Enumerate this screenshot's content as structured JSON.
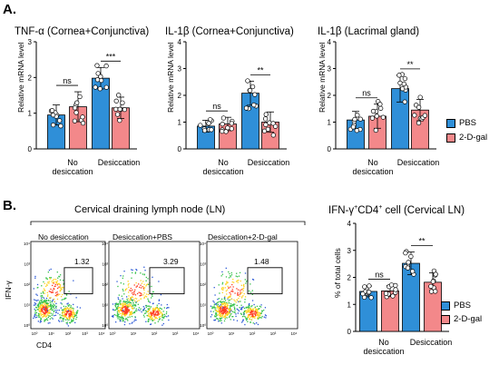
{
  "panel_labels": {
    "a": "A.",
    "b": "B."
  },
  "colors": {
    "pbs": "#2f8fd8",
    "dgal": "#f3888a"
  },
  "legend": {
    "pbs": "PBS",
    "dgal": "2-D-gal"
  },
  "categories": [
    "No desiccation",
    "Desiccation"
  ],
  "cat_text": {
    "no_line1": "No",
    "no_line2": "desiccation",
    "des": "Desiccation"
  },
  "chart_data": [
    {
      "type": "bar",
      "title": "TNF-α (Cornea+Conjunctiva)",
      "ylabel": "Relative mRNA level",
      "ylim": [
        0,
        3
      ],
      "yticks": [
        "0",
        "1",
        "2",
        "3"
      ],
      "categories": [
        "No desiccation",
        "Desiccation"
      ],
      "series": [
        {
          "name": "PBS",
          "values": [
            0.95,
            1.98
          ],
          "err": [
            0.28,
            0.3
          ]
        },
        {
          "name": "2-D-gal",
          "values": [
            1.18,
            1.15
          ],
          "err": [
            0.42,
            0.3
          ]
        }
      ],
      "significance": [
        {
          "group": "No desiccation",
          "label": "ns"
        },
        {
          "group": "Desiccation",
          "label": "***"
        }
      ]
    },
    {
      "type": "bar",
      "title": "IL-1β (Cornea+Conjunctiva)",
      "ylabel": "Relative mRNA level",
      "ylim": [
        0,
        4
      ],
      "yticks": [
        "0",
        "1",
        "2",
        "3",
        "4"
      ],
      "categories": [
        "No desiccation",
        "Desiccation"
      ],
      "series": [
        {
          "name": "PBS",
          "values": [
            0.85,
            2.08
          ],
          "err": [
            0.22,
            0.45
          ]
        },
        {
          "name": "2-D-gal",
          "values": [
            0.93,
            1.0
          ],
          "err": [
            0.25,
            0.38
          ]
        }
      ],
      "significance": [
        {
          "group": "No desiccation",
          "label": "ns"
        },
        {
          "group": "Desiccation",
          "label": "**"
        }
      ]
    },
    {
      "type": "bar",
      "title": "IL-1β (Lacrimal gland)",
      "ylabel": "Relative mRNA level",
      "ylim": [
        0,
        4
      ],
      "yticks": [
        "0",
        "1",
        "2",
        "3",
        "4"
      ],
      "categories": [
        "No desiccation",
        "Desiccation"
      ],
      "series": [
        {
          "name": "PBS",
          "values": [
            1.08,
            2.25
          ],
          "err": [
            0.32,
            0.5
          ]
        },
        {
          "name": "2-D-gal",
          "values": [
            1.22,
            1.45
          ],
          "err": [
            0.45,
            0.4
          ]
        }
      ],
      "significance": [
        {
          "group": "No desiccation",
          "label": "ns"
        },
        {
          "group": "Desiccation",
          "label": "**"
        }
      ]
    },
    {
      "type": "bar",
      "title": "IFN-γ+CD4+ cell (Cervical LN)",
      "ylabel": "% of total cells",
      "ylim": [
        0,
        4
      ],
      "yticks": [
        "0",
        "1",
        "2",
        "3",
        "4"
      ],
      "categories": [
        "No desiccation",
        "Desiccation"
      ],
      "series": [
        {
          "name": "PBS",
          "values": [
            1.48,
            2.52
          ],
          "err": [
            0.2,
            0.42
          ]
        },
        {
          "name": "2-D-gal",
          "values": [
            1.5,
            1.82
          ],
          "err": [
            0.2,
            0.35
          ]
        }
      ],
      "significance": [
        {
          "group": "No desiccation",
          "label": "ns"
        },
        {
          "group": "Desiccation",
          "label": "**"
        }
      ]
    }
  ],
  "titles": {
    "c0": {
      "main": "TNF-α (Cornea+Conjunctiva)"
    },
    "c1": {
      "main": "IL-1β (Cornea+Conjunctiva)"
    },
    "c2": {
      "main": "IL-1β (Lacrimal gland)"
    },
    "c3": {
      "pre": "IFN-γ",
      "sup1": "+",
      "mid": "CD4",
      "sup2": "+",
      "post": " cell (Cervical LN)"
    }
  },
  "flow": {
    "title": "Cervical draining lymph node (LN)",
    "plots": [
      {
        "label": "No desiccation",
        "gate_value": "1.32"
      },
      {
        "label": "Desiccation+PBS",
        "gate_value": "3.29"
      },
      {
        "label": "Desiccation+2-D-gal",
        "gate_value": "1.48"
      }
    ],
    "y_axis": "IFN-γ",
    "x_axis": "CD4",
    "tick_labels": [
      "10⁰",
      "10¹",
      "10²",
      "10³",
      "10⁴"
    ]
  }
}
